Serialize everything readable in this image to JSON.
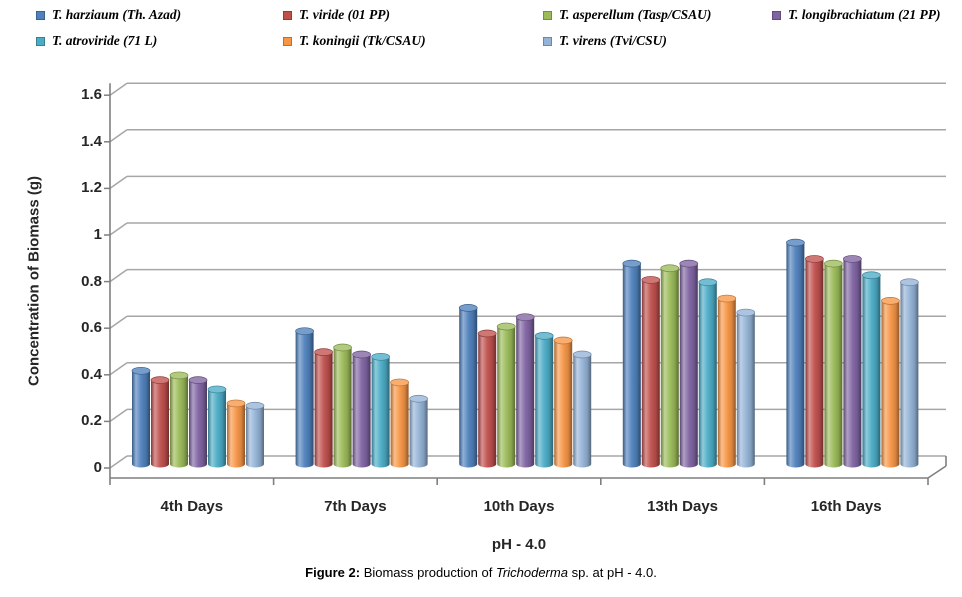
{
  "figure": {
    "caption_label": "Figure 2:",
    "caption_text_1": " Biomass production of ",
    "caption_italic": "Trichoderma",
    "caption_text_2": " sp. at pH - 4.0."
  },
  "chart_data": {
    "type": "bar",
    "style": "3d-cylinder",
    "title": "",
    "xlabel": "pH - 4.0",
    "ylabel": "Concentration of Biomass (g)",
    "ylim": [
      0,
      1.6
    ],
    "ytick_step": 0.2,
    "ytick_labels": [
      "0",
      "0.2",
      "0.4",
      "0.6",
      "0.8",
      "1",
      "1.2",
      "1.4",
      "1.6"
    ],
    "grid": true,
    "legend_position": "top-left-two-rows",
    "categories": [
      "4th Days",
      "7th Days",
      "10th Days",
      "13th Days",
      "16th Days"
    ],
    "series": [
      {
        "name": "T. harziaum (Th. Azad)",
        "color": "#4F81BD",
        "values": [
          0.4,
          0.57,
          0.67,
          0.86,
          0.95
        ]
      },
      {
        "name": "T. viride (01 PP)",
        "color": "#C0504D",
        "values": [
          0.36,
          0.48,
          0.56,
          0.79,
          0.88
        ]
      },
      {
        "name": "T. asperellum (Tasp/CSAU)",
        "color": "#9BBB59",
        "values": [
          0.38,
          0.5,
          0.59,
          0.84,
          0.86
        ]
      },
      {
        "name": "T. longibrachiatum (21 PP)",
        "color": "#8064A2",
        "values": [
          0.36,
          0.47,
          0.63,
          0.86,
          0.88
        ]
      },
      {
        "name": "T. atroviride (71 L)",
        "color": "#4BACC6",
        "values": [
          0.32,
          0.46,
          0.55,
          0.78,
          0.81
        ]
      },
      {
        "name": "T. koningii (Tk/CSAU)",
        "color": "#F79646",
        "values": [
          0.26,
          0.35,
          0.53,
          0.71,
          0.7
        ]
      },
      {
        "name": "T. virens (Tvi/CSU)",
        "color": "#95B3D7",
        "values": [
          0.25,
          0.28,
          0.47,
          0.65,
          0.78
        ]
      }
    ],
    "colors": {
      "axis": "#7F7F7F",
      "gridline": "#A6A6A6",
      "background": "#FFFFFF",
      "label_text": "#262626"
    }
  }
}
